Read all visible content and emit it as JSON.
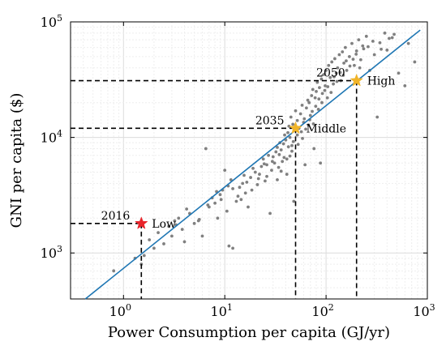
{
  "chart_data": {
    "type": "scatter",
    "title": "",
    "xlabel": "Power Consumption per capita (GJ/yr)",
    "ylabel": "GNI per capita ($)",
    "xscale": "log",
    "yscale": "log",
    "xlim": [
      0.3,
      1000
    ],
    "ylim": [
      400,
      100000
    ],
    "grid": true,
    "x_ticks": [
      {
        "value": 1,
        "base": "10",
        "exp": "0"
      },
      {
        "value": 10,
        "base": "10",
        "exp": "1"
      },
      {
        "value": 100,
        "base": "10",
        "exp": "2"
      },
      {
        "value": 1000,
        "base": "10",
        "exp": "3"
      }
    ],
    "y_ticks": [
      {
        "value": 1000,
        "base": "10",
        "exp": "3"
      },
      {
        "value": 10000,
        "base": "10",
        "exp": "4"
      },
      {
        "value": 100000,
        "base": "10",
        "exp": "5"
      }
    ],
    "scatter_color": "#808080",
    "scatter_points": [
      [
        0.8,
        700
      ],
      [
        1.5,
        800
      ],
      [
        1.3,
        900
      ],
      [
        1.6,
        950
      ],
      [
        1.8,
        1300
      ],
      [
        2.0,
        1100
      ],
      [
        2.2,
        1500
      ],
      [
        2.5,
        1200
      ],
      [
        2.8,
        1700
      ],
      [
        3.0,
        1400
      ],
      [
        3.2,
        1900
      ],
      [
        3.5,
        2000
      ],
      [
        3.8,
        1600
      ],
      [
        4.0,
        1250
      ],
      [
        4.5,
        2200
      ],
      [
        5.0,
        1800
      ],
      [
        5.5,
        1900
      ],
      [
        6.0,
        1400
      ],
      [
        6.5,
        8000
      ],
      [
        7.0,
        2500
      ],
      [
        7.5,
        3000
      ],
      [
        8.0,
        2700
      ],
      [
        8.5,
        2000
      ],
      [
        9.0,
        3200
      ],
      [
        9.5,
        3500
      ],
      [
        10.0,
        5200
      ],
      [
        10.5,
        2300
      ],
      [
        11.0,
        1150
      ],
      [
        12.0,
        3600
      ],
      [
        13.0,
        2800
      ],
      [
        14.0,
        3700
      ],
      [
        15.0,
        4000
      ],
      [
        16.0,
        3300
      ],
      [
        17.0,
        2500
      ],
      [
        18.0,
        4500
      ],
      [
        20.0,
        5000
      ],
      [
        21.0,
        3900
      ],
      [
        22.0,
        4800
      ],
      [
        23.0,
        5600
      ],
      [
        24.0,
        6500
      ],
      [
        25.0,
        4200
      ],
      [
        26.0,
        5800
      ],
      [
        27.0,
        7000
      ],
      [
        28.0,
        2200
      ],
      [
        29.0,
        5200
      ],
      [
        30.0,
        6800
      ],
      [
        31.0,
        6000
      ],
      [
        32.0,
        7500
      ],
      [
        33.0,
        8200
      ],
      [
        34.0,
        5500
      ],
      [
        35.0,
        9000
      ],
      [
        36.0,
        7800
      ],
      [
        37.0,
        6200
      ],
      [
        38.0,
        8800
      ],
      [
        39.0,
        10500
      ],
      [
        40.0,
        9500
      ],
      [
        41.0,
        4800
      ],
      [
        42.0,
        11000
      ],
      [
        43.0,
        12500
      ],
      [
        44.0,
        10000
      ],
      [
        45.0,
        15000
      ],
      [
        46.0,
        8500
      ],
      [
        47.0,
        13000
      ],
      [
        48.0,
        2800
      ],
      [
        49.0,
        11500
      ],
      [
        50.0,
        17000
      ],
      [
        52.0,
        14000
      ],
      [
        54.0,
        12000
      ],
      [
        56.0,
        16000
      ],
      [
        58.0,
        19000
      ],
      [
        60.0,
        13500
      ],
      [
        62.0,
        5800
      ],
      [
        64.0,
        18000
      ],
      [
        66.0,
        21000
      ],
      [
        68.0,
        20000
      ],
      [
        70.0,
        15500
      ],
      [
        72.0,
        23000
      ],
      [
        74.0,
        26000
      ],
      [
        76.0,
        8000
      ],
      [
        78.0,
        22000
      ],
      [
        80.0,
        25000
      ],
      [
        82.0,
        30000
      ],
      [
        84.0,
        17500
      ],
      [
        86.0,
        27000
      ],
      [
        88.0,
        6000
      ],
      [
        90.0,
        32000
      ],
      [
        92.0,
        24000
      ],
      [
        95.0,
        35000
      ],
      [
        98.0,
        28000
      ],
      [
        100.0,
        38000
      ],
      [
        103.0,
        22000
      ],
      [
        106.0,
        42000
      ],
      [
        110.0,
        33000
      ],
      [
        114.0,
        45000
      ],
      [
        118.0,
        29000
      ],
      [
        122.0,
        48000
      ],
      [
        126.0,
        36000
      ],
      [
        130.0,
        40000
      ],
      [
        135.0,
        52000
      ],
      [
        140.0,
        31000
      ],
      [
        145.0,
        55000
      ],
      [
        150.0,
        44000
      ],
      [
        155.0,
        60000
      ],
      [
        160.0,
        38000
      ],
      [
        170.0,
        50000
      ],
      [
        180.0,
        65000
      ],
      [
        190.0,
        42000
      ],
      [
        200.0,
        56000
      ],
      [
        210.0,
        70000
      ],
      [
        220.0,
        47000
      ],
      [
        230.0,
        62000
      ],
      [
        250.0,
        75000
      ],
      [
        270.0,
        38000
      ],
      [
        290.0,
        68000
      ],
      [
        320.0,
        15000
      ],
      [
        350.0,
        58000
      ],
      [
        380.0,
        80000
      ],
      [
        420.0,
        72000
      ],
      [
        470.0,
        78000
      ],
      [
        520.0,
        36000
      ],
      [
        600.0,
        28000
      ],
      [
        650.0,
        65000
      ],
      [
        750.0,
        45000
      ],
      [
        12.0,
        1100
      ],
      [
        14.5,
        2900
      ],
      [
        16.5,
        4100
      ],
      [
        18.5,
        3500
      ],
      [
        26.0,
        4600
      ],
      [
        33.0,
        4300
      ],
      [
        36.0,
        5100
      ],
      [
        41.0,
        6500
      ],
      [
        44.0,
        6900
      ],
      [
        46.0,
        7600
      ],
      [
        52.0,
        10500
      ],
      [
        57.0,
        11200
      ],
      [
        61.0,
        14500
      ],
      [
        67.0,
        12800
      ],
      [
        73.0,
        16800
      ],
      [
        79.0,
        18600
      ],
      [
        85.0,
        21500
      ],
      [
        91.0,
        20000
      ],
      [
        97.0,
        25500
      ],
      [
        104.0,
        27500
      ],
      [
        112.0,
        24500
      ],
      [
        120.0,
        33500
      ],
      [
        128.0,
        30500
      ],
      [
        138.0,
        36500
      ],
      [
        148.0,
        34500
      ],
      [
        158.0,
        46000
      ],
      [
        172.0,
        41500
      ],
      [
        185.0,
        47500
      ],
      [
        198.0,
        52500
      ],
      [
        215.0,
        40000
      ],
      [
        235.0,
        58500
      ],
      [
        260.0,
        61000
      ],
      [
        300.0,
        52000
      ],
      [
        340.0,
        66000
      ],
      [
        400.0,
        57000
      ],
      [
        450.0,
        73000
      ],
      [
        3.3,
        1750
      ],
      [
        4.2,
        2400
      ],
      [
        5.6,
        1950
      ],
      [
        6.8,
        2600
      ],
      [
        8.3,
        3400
      ],
      [
        9.2,
        2900
      ],
      [
        10.8,
        3800
      ],
      [
        11.5,
        4300
      ],
      [
        13.5,
        3100
      ],
      [
        15.5,
        4700
      ],
      [
        19.0,
        5400
      ],
      [
        21.5,
        4400
      ],
      [
        24.5,
        5900
      ],
      [
        29.5,
        6200
      ],
      [
        34.5,
        7100
      ],
      [
        38.5,
        6700
      ],
      [
        42.5,
        8300
      ],
      [
        47.5,
        9200
      ],
      [
        53.0,
        8700
      ],
      [
        58.5,
        9800
      ],
      [
        63.0,
        11800
      ],
      [
        69.0,
        14200
      ],
      [
        75.0,
        13100
      ]
    ],
    "fit_line": {
      "x": [
        0.42,
        850
      ],
      "y": [
        400,
        85000
      ],
      "color": "#1f77b4"
    },
    "highlights": [
      {
        "x": 1.5,
        "y": 1800,
        "year": "2016",
        "label": "Low",
        "color": "#e8242a"
      },
      {
        "x": 50,
        "y": 12000,
        "year": "2035",
        "label": "Middle",
        "color": "#f0b429"
      },
      {
        "x": 200,
        "y": 31000,
        "year": "2050",
        "label": "High",
        "color": "#f0b429"
      }
    ]
  }
}
